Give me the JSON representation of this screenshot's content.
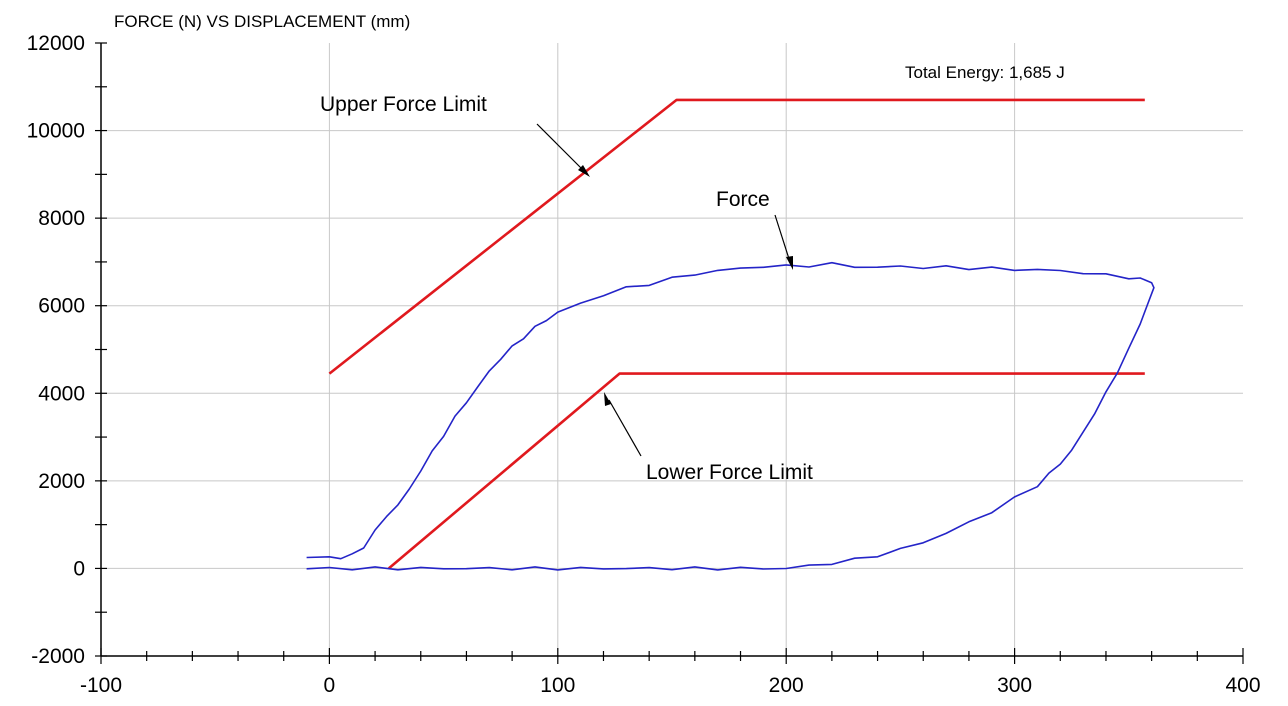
{
  "chart_data": {
    "type": "line",
    "title": "FORCE (N) VS DISPLACEMENT (mm)",
    "xlabel": "",
    "ylabel": "",
    "xlim": [
      -100,
      400
    ],
    "ylim": [
      -2000,
      12000
    ],
    "x_ticks": [
      -100,
      0,
      100,
      200,
      300,
      400
    ],
    "y_ticks": [
      -2000,
      0,
      2000,
      4000,
      6000,
      8000,
      10000,
      12000
    ],
    "grid": true,
    "annotations": {
      "total_energy": "Total Energy: 1,685 J",
      "upper_limit_label": "Upper Force Limit",
      "lower_limit_label": "Lower Force Limit",
      "force_label": "Force"
    },
    "series": [
      {
        "name": "Upper Force Limit",
        "color": "#e0191e",
        "x": [
          0,
          152,
          357
        ],
        "y": [
          4450,
          10700,
          10700
        ]
      },
      {
        "name": "Lower Force Limit",
        "color": "#e0191e",
        "x": [
          26,
          127,
          357
        ],
        "y": [
          0,
          4450,
          4450
        ]
      },
      {
        "name": "Force",
        "color": "#2424c8",
        "x": [
          -10,
          0,
          5,
          10,
          15,
          20,
          25,
          30,
          35,
          40,
          45,
          50,
          55,
          60,
          65,
          70,
          75,
          80,
          85,
          90,
          95,
          100,
          110,
          120,
          130,
          140,
          150,
          160,
          170,
          180,
          190,
          200,
          210,
          220,
          230,
          240,
          250,
          260,
          270,
          280,
          290,
          300,
          310,
          320,
          330,
          340,
          350,
          355,
          360,
          361,
          358,
          355,
          350,
          345,
          340,
          335,
          330,
          325,
          320,
          315,
          310,
          300,
          290,
          280,
          270,
          260,
          250,
          240,
          230,
          220,
          210,
          200,
          190,
          180,
          170,
          160,
          150,
          140,
          130,
          120,
          110,
          100,
          90,
          80,
          70,
          60,
          50,
          40,
          30,
          20,
          10,
          0,
          -10
        ],
        "y": [
          250,
          250,
          250,
          300,
          500,
          850,
          1200,
          1450,
          1800,
          2250,
          2650,
          3050,
          3450,
          3800,
          4150,
          4500,
          4800,
          5050,
          5280,
          5500,
          5680,
          5850,
          6050,
          6250,
          6400,
          6500,
          6620,
          6720,
          6800,
          6850,
          6900,
          6900,
          6920,
          6950,
          6900,
          6870,
          6900,
          6870,
          6880,
          6860,
          6850,
          6830,
          6820,
          6800,
          6750,
          6700,
          6650,
          6600,
          6550,
          6400,
          6000,
          5600,
          5000,
          4500,
          4000,
          3550,
          3100,
          2700,
          2400,
          2150,
          1900,
          1600,
          1300,
          1050,
          800,
          600,
          430,
          300,
          200,
          120,
          60,
          0,
          0,
          0,
          0,
          0,
          0,
          0,
          0,
          0,
          0,
          0,
          0,
          0,
          0,
          0,
          0,
          0,
          0,
          0,
          0,
          0,
          0
        ]
      }
    ]
  }
}
